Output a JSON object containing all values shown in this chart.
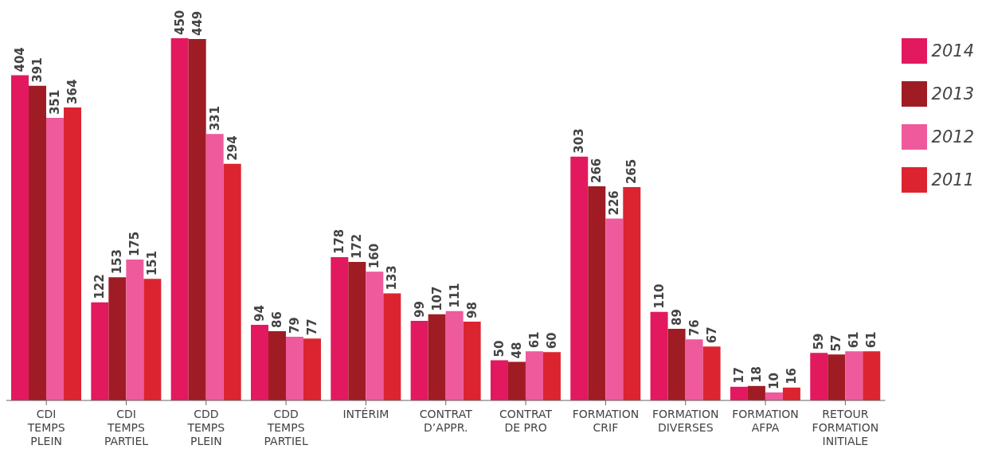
{
  "chart_data": {
    "type": "bar",
    "categories": [
      "CDI TEMPS PLEIN",
      "CDI TEMPS PARTIEL",
      "CDD TEMPS PLEIN",
      "CDD TEMPS PARTIEL",
      "INTÉRIM",
      "CONTRAT D’APPR.",
      "CONTRAT DE PRO",
      "FORMATION CRIF",
      "FORMATION DIVERSES",
      "FORMATION AFPA",
      "RETOUR FORMATION INITIALE"
    ],
    "series": [
      {
        "name": "2014",
        "color": "#e2195f",
        "values": [
          404,
          122,
          450,
          94,
          178,
          99,
          50,
          303,
          110,
          17,
          59
        ]
      },
      {
        "name": "2013",
        "color": "#a01c24",
        "values": [
          391,
          153,
          449,
          86,
          172,
          107,
          48,
          266,
          89,
          18,
          57
        ]
      },
      {
        "name": "2012",
        "color": "#ee5a9c",
        "values": [
          351,
          175,
          331,
          79,
          160,
          111,
          61,
          226,
          76,
          10,
          61
        ]
      },
      {
        "name": "2011",
        "color": "#dc2430",
        "values": [
          364,
          151,
          294,
          77,
          133,
          98,
          60,
          265,
          67,
          16,
          61
        ]
      }
    ],
    "data_labels": true,
    "legend": "top right",
    "grid": false
  }
}
